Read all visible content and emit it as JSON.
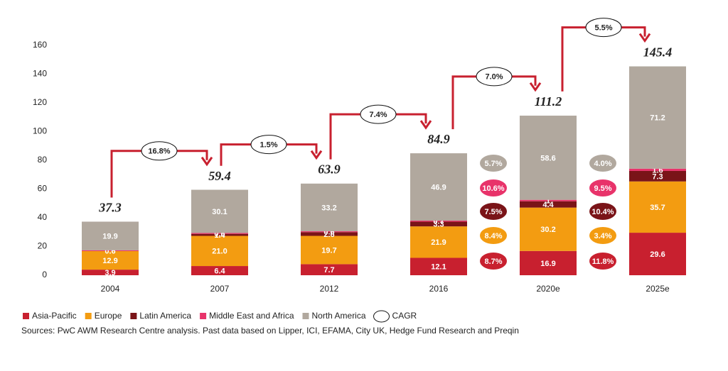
{
  "chart_data": {
    "type": "stacked_bar",
    "categories": [
      "2004",
      "2007",
      "2012",
      "2016",
      "2020e",
      "2025e"
    ],
    "ylim": [
      0,
      160
    ],
    "yticks": [
      0,
      20,
      40,
      60,
      80,
      100,
      120,
      140,
      160
    ],
    "series": [
      {
        "name": "Asia-Pacific",
        "color": "#c8202f",
        "values": [
          3.9,
          6.4,
          7.7,
          12.1,
          16.9,
          29.6
        ],
        "cagr_values": [
          8.7,
          11.8
        ],
        "cagr_labels": [
          "8.7%",
          "11.8%"
        ]
      },
      {
        "name": "Europe",
        "color": "#f39c11",
        "values": [
          12.9,
          21.0,
          19.7,
          21.9,
          30.2,
          35.7
        ],
        "value_labels": [
          "12.9",
          "21.0",
          "19.7",
          "21.9",
          "30.2",
          "35.7"
        ],
        "cagr_values": [
          8.4,
          3.4
        ],
        "cagr_labels": [
          "8.4%",
          "3.4%"
        ]
      },
      {
        "name": "Latin America",
        "color": "#7a1418",
        "values": [
          null,
          1.4,
          2.6,
          3.3,
          4.4,
          7.3
        ],
        "cagr_values": [
          7.5,
          10.4
        ],
        "cagr_labels": [
          "7.5%",
          "10.4%"
        ]
      },
      {
        "name": "Middle East and Africa",
        "color": "#e8336a",
        "values": [
          0.6,
          0.6,
          0.6,
          0.7,
          1.0,
          1.6
        ],
        "cagr_values": [
          10.6,
          9.5
        ],
        "cagr_labels": [
          "10.6%",
          "9.5%"
        ]
      },
      {
        "name": "North America",
        "color": "#b1a89e",
        "values": [
          19.9,
          30.1,
          33.2,
          46.9,
          58.6,
          71.2
        ],
        "cagr_values": [
          5.7,
          4.0
        ],
        "cagr_labels": [
          "5.7%",
          "4.0%"
        ]
      }
    ],
    "totals": {
      "values": [
        37.3,
        59.4,
        63.9,
        84.9,
        111.2,
        145.4
      ]
    },
    "cagr": {
      "values": [
        16.8,
        1.5,
        7.4,
        7.0,
        5.5
      ],
      "value_labels": [
        "16.8%",
        "1.5%",
        "7.4%",
        "7.0%",
        "5.5%"
      ]
    },
    "cagr_legend": "CAGR",
    "source": "Sources: PwC AWM Research Centre analysis. Past data  based on Lipper, ICI, EFAMA, City UK, Hedge Fund Research and Preqin"
  }
}
